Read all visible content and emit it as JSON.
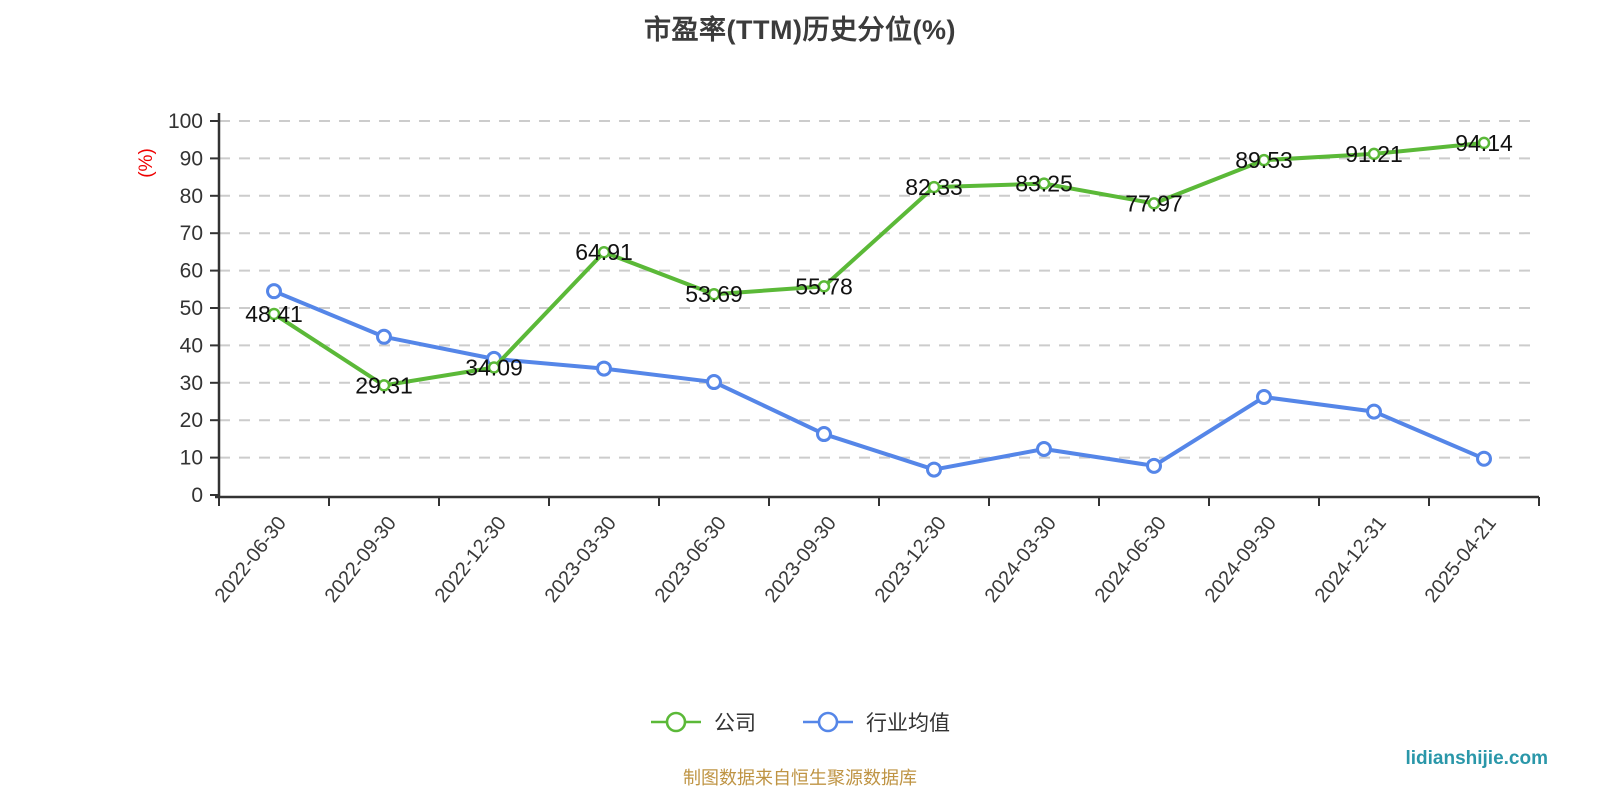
{
  "title": "市盈率(TTM)历史分位(%)",
  "footer": {
    "source_note": "制图数据来自恒生聚源数据库",
    "watermark": "lidianshijie.com"
  },
  "colors": {
    "company_green": "#5bb938",
    "industry_blue": "#5586e8",
    "axis": "#333333",
    "gridline": "#cccccc",
    "data_label": "#111111",
    "y_name_red": "#ee0000",
    "title_text": "#3b3b3b",
    "source_gold": "#bf9444",
    "watermark_teal": "#2a97a9"
  },
  "chart_data": {
    "type": "line",
    "title": "市盈率(TTM)历史分位(%)",
    "xlabel": "",
    "ylabel": "(%)",
    "ylim": [
      0,
      100
    ],
    "y_ticks": [
      0,
      10,
      20,
      30,
      40,
      50,
      60,
      70,
      80,
      90,
      100
    ],
    "grid": true,
    "grid_style": "dashed",
    "legend_position": "bottom",
    "categories": [
      "2022-06-30",
      "2022-09-30",
      "2022-12-30",
      "2023-03-30",
      "2023-06-30",
      "2023-09-30",
      "2023-12-30",
      "2024-03-30",
      "2024-06-30",
      "2024-09-30",
      "2024-12-31",
      "2025-04-21"
    ],
    "series": [
      {
        "name": "公司",
        "color": "#5bb938",
        "labels_visible": true,
        "values": [
          48.41,
          29.31,
          34.09,
          64.91,
          53.69,
          55.78,
          82.33,
          83.25,
          77.97,
          89.53,
          91.21,
          94.14
        ]
      },
      {
        "name": "行业均值",
        "color": "#5586e8",
        "labels_visible": false,
        "values": [
          54.5,
          42.3,
          36.4,
          33.8,
          30.2,
          16.3,
          6.8,
          12.3,
          7.8,
          26.2,
          22.3,
          9.7
        ]
      }
    ]
  }
}
